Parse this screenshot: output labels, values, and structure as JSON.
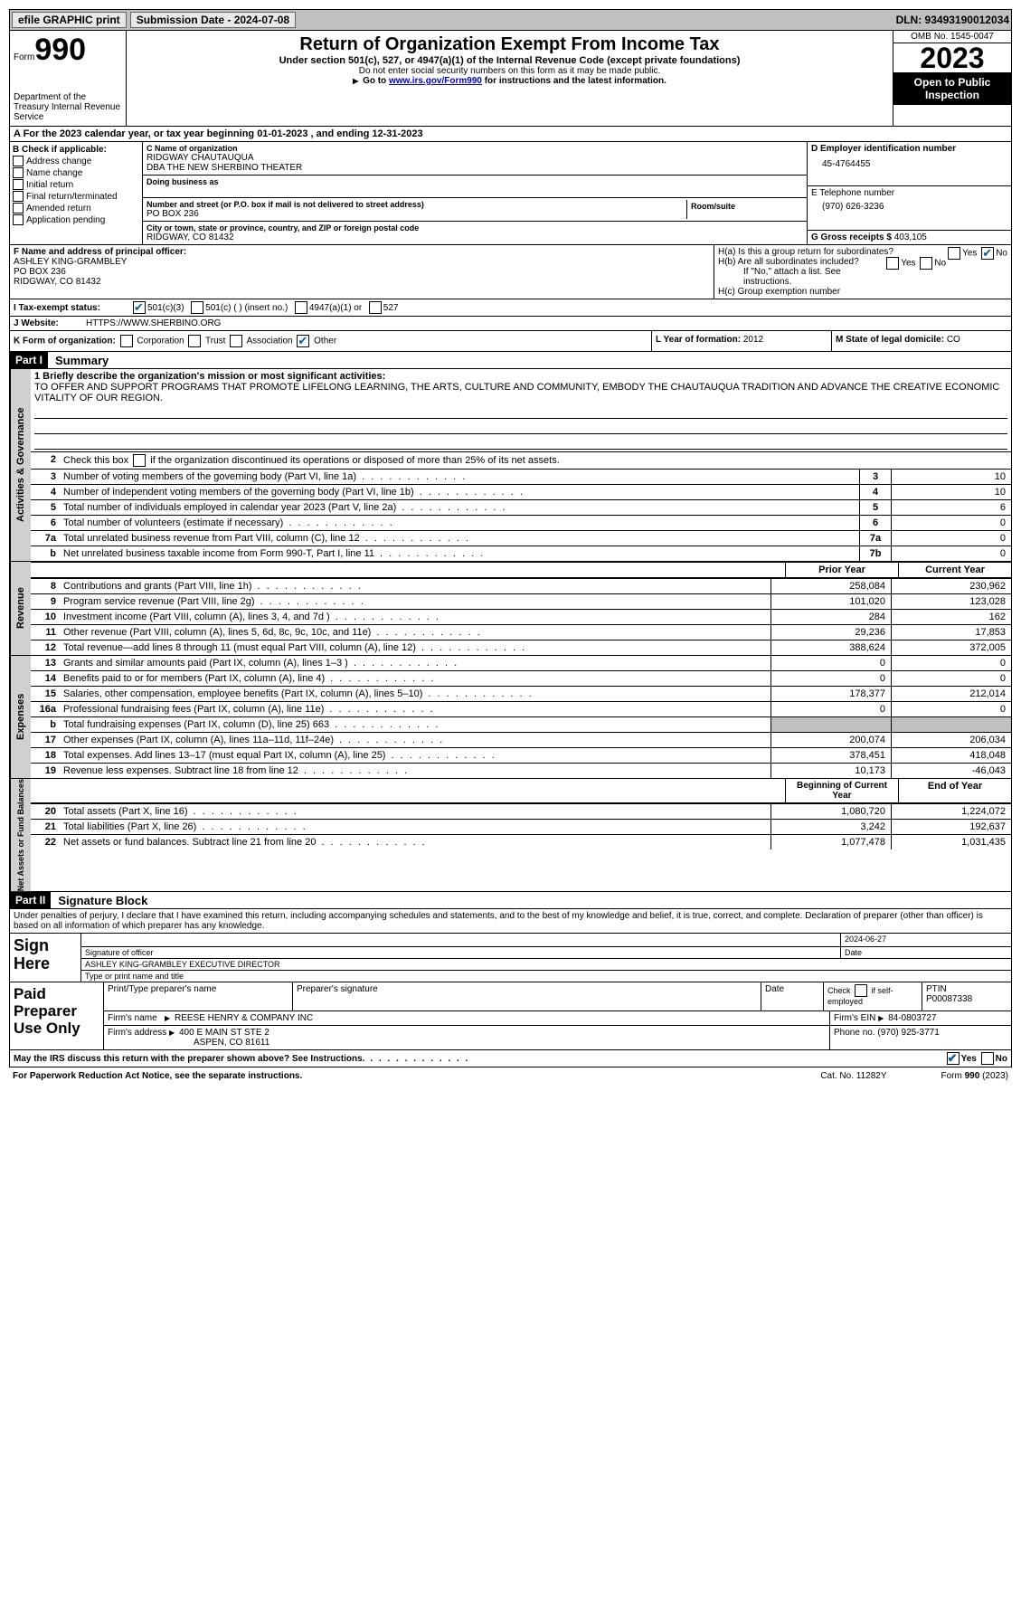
{
  "topbar": {
    "efile_label": "efile GRAPHIC print",
    "submission_label": "Submission Date - 2024-07-08",
    "dln": "DLN: 93493190012034"
  },
  "header": {
    "form_label": "Form",
    "form_number": "990",
    "dept": "Department of the Treasury Internal Revenue Service",
    "title": "Return of Organization Exempt From Income Tax",
    "subtitle": "Under section 501(c), 527, or 4947(a)(1) of the Internal Revenue Code (except private foundations)",
    "note1": "Do not enter social security numbers on this form as it may be made public.",
    "note2_pre": "Go to ",
    "note2_link": "www.irs.gov/Form990",
    "note2_post": " for instructions and the latest information.",
    "omb": "OMB No. 1545-0047",
    "year": "2023",
    "open": "Open to Public Inspection"
  },
  "row_a": "A For the 2023 calendar year, or tax year beginning 01-01-2023    , and ending 12-31-2023",
  "col_b": {
    "label": "B Check if applicable:",
    "items": [
      "Address change",
      "Name change",
      "Initial return",
      "Final return/terminated",
      "Amended return",
      "Application pending"
    ]
  },
  "col_c": {
    "name_label": "C Name of organization",
    "name1": "RIDGWAY CHAUTAUQUA",
    "name2": "DBA THE NEW SHERBINO THEATER",
    "dba_label": "Doing business as",
    "addr_label": "Number and street (or P.O. box if mail is not delivered to street address)",
    "addr": "PO BOX 236",
    "suite_label": "Room/suite",
    "city_label": "City or town, state or province, country, and ZIP or foreign postal code",
    "city": "RIDGWAY, CO  81432"
  },
  "col_d": {
    "ein_label": "D Employer identification number",
    "ein": "45-4764455",
    "tel_label": "E Telephone number",
    "tel": "(970) 626-3236",
    "gross_label": "G Gross receipts $",
    "gross": "403,105"
  },
  "row_f": {
    "label": "F Name and address of principal officer:",
    "name": "ASHLEY KING-GRAMBLEY",
    "addr": "PO BOX 236",
    "city": "RIDGWAY, CO  81432"
  },
  "row_h": {
    "ha": "H(a)  Is this a group return for subordinates?",
    "hb": "H(b)  Are all subordinates included?",
    "hb_note": "If \"No,\" attach a list. See instructions.",
    "hc": "H(c)  Group exemption number",
    "yes": "Yes",
    "no": "No"
  },
  "row_i": {
    "label": "I   Tax-exempt status:",
    "c3": "501(c)(3)",
    "c": "501(c) (   ) (insert no.)",
    "a1": "4947(a)(1) or",
    "s527": "527"
  },
  "row_j": {
    "label": "J   Website:",
    "site": "HTTPS://WWW.SHERBINO.ORG"
  },
  "row_k": {
    "label": "K Form of organization:",
    "corp": "Corporation",
    "trust": "Trust",
    "assoc": "Association",
    "other": "Other"
  },
  "row_l": {
    "label": "L Year of formation:",
    "val": "2012"
  },
  "row_m": {
    "label": "M State of legal domicile:",
    "val": "CO"
  },
  "parts": {
    "p1": "Part I",
    "p1_title": "Summary",
    "p2": "Part II",
    "p2_title": "Signature Block"
  },
  "sidebar": {
    "ag": "Activities & Governance",
    "rev": "Revenue",
    "exp": "Expenses",
    "net": "Net Assets or Fund Balances"
  },
  "mission": {
    "label": "1   Briefly describe the organization's mission or most significant activities:",
    "text": "TO OFFER AND SUPPORT PROGRAMS THAT PROMOTE LIFELONG LEARNING, THE ARTS, CULTURE AND COMMUNITY, EMBODY THE CHAUTAUQUA TRADITION AND ADVANCE THE CREATIVE ECONOMIC VITALITY OF OUR REGION."
  },
  "l2": "Check this box       if the organization discontinued its operations or disposed of more than 25% of its net assets.",
  "lines_ag": [
    {
      "n": "3",
      "d": "Number of voting members of the governing body (Part VI, line 1a)",
      "b": "3",
      "v": "10"
    },
    {
      "n": "4",
      "d": "Number of independent voting members of the governing body (Part VI, line 1b)",
      "b": "4",
      "v": "10"
    },
    {
      "n": "5",
      "d": "Total number of individuals employed in calendar year 2023 (Part V, line 2a)",
      "b": "5",
      "v": "6"
    },
    {
      "n": "6",
      "d": "Total number of volunteers (estimate if necessary)",
      "b": "6",
      "v": "0"
    },
    {
      "n": "7a",
      "d": "Total unrelated business revenue from Part VIII, column (C), line 12",
      "b": "7a",
      "v": "0"
    },
    {
      "n": "b",
      "d": "Net unrelated business taxable income from Form 990-T, Part I, line 11",
      "b": "7b",
      "v": "0"
    }
  ],
  "hdr_py": "Prior Year",
  "hdr_cy": "Current Year",
  "lines_rev": [
    {
      "n": "8",
      "d": "Contributions and grants (Part VIII, line 1h)",
      "py": "258,084",
      "cy": "230,962"
    },
    {
      "n": "9",
      "d": "Program service revenue (Part VIII, line 2g)",
      "py": "101,020",
      "cy": "123,028"
    },
    {
      "n": "10",
      "d": "Investment income (Part VIII, column (A), lines 3, 4, and 7d )",
      "py": "284",
      "cy": "162"
    },
    {
      "n": "11",
      "d": "Other revenue (Part VIII, column (A), lines 5, 6d, 8c, 9c, 10c, and 11e)",
      "py": "29,236",
      "cy": "17,853"
    },
    {
      "n": "12",
      "d": "Total revenue—add lines 8 through 11 (must equal Part VIII, column (A), line 12)",
      "py": "388,624",
      "cy": "372,005"
    }
  ],
  "lines_exp": [
    {
      "n": "13",
      "d": "Grants and similar amounts paid (Part IX, column (A), lines 1–3 )",
      "py": "0",
      "cy": "0"
    },
    {
      "n": "14",
      "d": "Benefits paid to or for members (Part IX, column (A), line 4)",
      "py": "0",
      "cy": "0"
    },
    {
      "n": "15",
      "d": "Salaries, other compensation, employee benefits (Part IX, column (A), lines 5–10)",
      "py": "178,377",
      "cy": "212,014"
    },
    {
      "n": "16a",
      "d": "Professional fundraising fees (Part IX, column (A), line 11e)",
      "py": "0",
      "cy": "0"
    },
    {
      "n": "b",
      "d": "Total fundraising expenses (Part IX, column (D), line 25) 663",
      "py": "",
      "cy": "",
      "grey": true
    },
    {
      "n": "17",
      "d": "Other expenses (Part IX, column (A), lines 11a–11d, 11f–24e)",
      "py": "200,074",
      "cy": "206,034"
    },
    {
      "n": "18",
      "d": "Total expenses. Add lines 13–17 (must equal Part IX, column (A), line 25)",
      "py": "378,451",
      "cy": "418,048"
    },
    {
      "n": "19",
      "d": "Revenue less expenses. Subtract line 18 from line 12",
      "py": "10,173",
      "cy": "-46,043"
    }
  ],
  "hdr_begin": "Beginning of Current Year",
  "hdr_end": "End of Year",
  "lines_net": [
    {
      "n": "20",
      "d": "Total assets (Part X, line 16)",
      "py": "1,080,720",
      "cy": "1,224,072"
    },
    {
      "n": "21",
      "d": "Total liabilities (Part X, line 26)",
      "py": "3,242",
      "cy": "192,637"
    },
    {
      "n": "22",
      "d": "Net assets or fund balances. Subtract line 21 from line 20",
      "py": "1,077,478",
      "cy": "1,031,435"
    }
  ],
  "sig": {
    "text": "Under penalties of perjury, I declare that I have examined this return, including accompanying schedules and statements, and to the best of my knowledge and belief, it is true, correct, and complete. Declaration of preparer (other than officer) is based on all information of which preparer has any knowledge.",
    "sign_here": "Sign Here",
    "sig_label": "Signature of officer",
    "date": "2024-06-27",
    "date_label": "Date",
    "name": "ASHLEY KING-GRAMBLEY  EXECUTIVE DIRECTOR",
    "name_label": "Type or print name and title"
  },
  "paid": {
    "label": "Paid Preparer Use Only",
    "pt_label": "Print/Type preparer's name",
    "sig_label": "Preparer's signature",
    "date_label": "Date",
    "check_label": "Check         if self-employed",
    "ptin_label": "PTIN",
    "ptin": "P00087338",
    "firm_label": "Firm's name",
    "firm": "REESE HENRY & COMPANY INC",
    "ein_label": "Firm's EIN",
    "ein": "84-0803727",
    "addr_label": "Firm's address",
    "addr1": "400 E MAIN ST STE 2",
    "addr2": "ASPEN, CO  81611",
    "phone_label": "Phone no.",
    "phone": "(970) 925-3771"
  },
  "footer": {
    "discuss": "May the IRS discuss this return with the preparer shown above? See Instructions.",
    "yes": "Yes",
    "no": "No",
    "paperwork": "For Paperwork Reduction Act Notice, see the separate instructions.",
    "cat": "Cat. No. 11282Y",
    "form": "Form 990 (2023)"
  }
}
